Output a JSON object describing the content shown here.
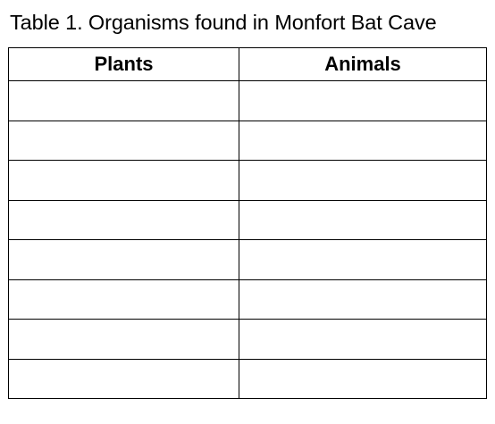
{
  "caption": "Table 1.  Organisms found in Monfort Bat Cave",
  "table": {
    "headers": [
      "Plants",
      "Animals"
    ],
    "rows": [
      [
        "",
        ""
      ],
      [
        "",
        ""
      ],
      [
        "",
        ""
      ],
      [
        "",
        ""
      ],
      [
        "",
        ""
      ],
      [
        "",
        ""
      ],
      [
        "",
        ""
      ],
      [
        "",
        ""
      ]
    ]
  }
}
